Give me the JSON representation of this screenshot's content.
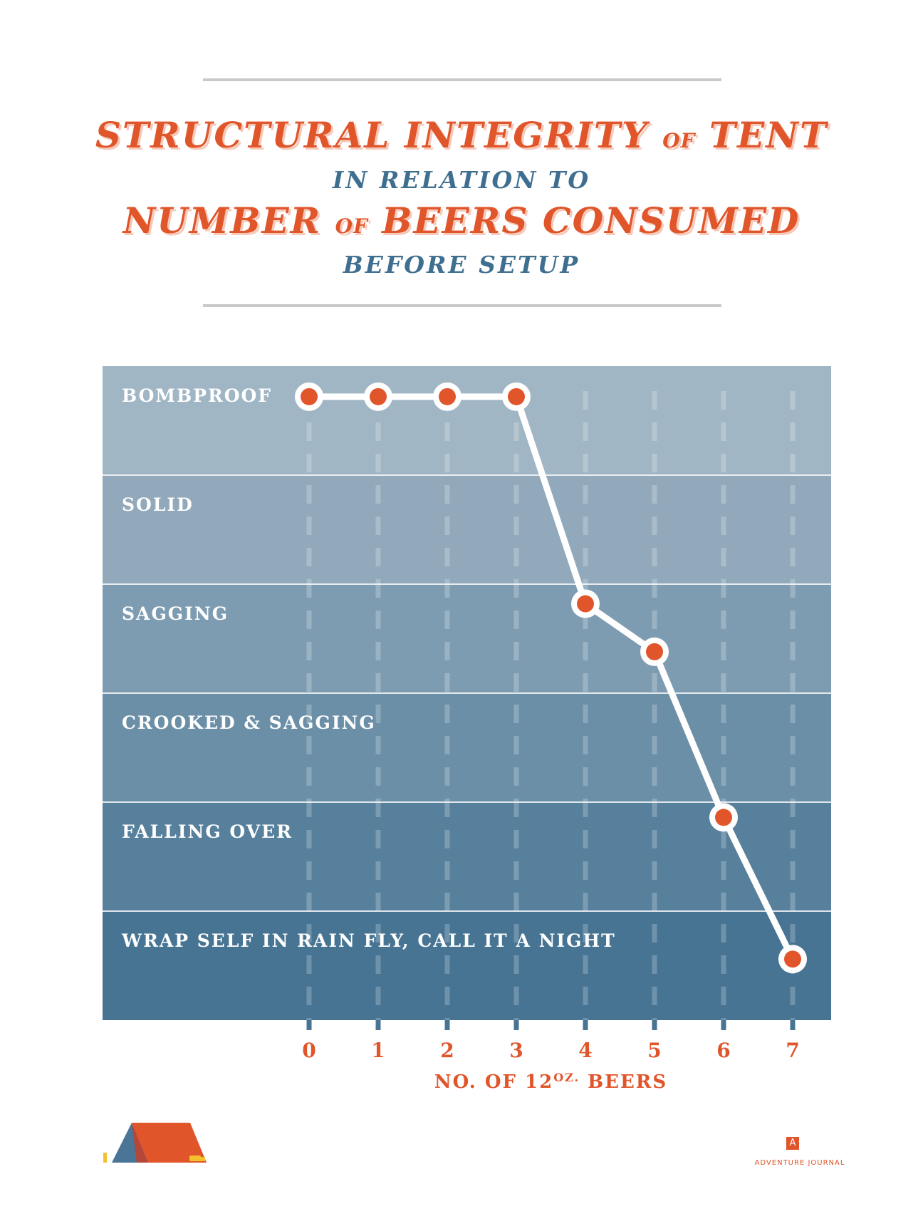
{
  "header": {
    "title_line1": {
      "part1": "STRUCTURAL INTEGRITY",
      "joiner": "OF",
      "part2": "TENT"
    },
    "title_line2": "IN RELATION TO",
    "title_line3": {
      "part1": "NUMBER",
      "joiner": "OF",
      "part2": "BEERS CONSUMED"
    },
    "title_line4": "BEFORE SETUP"
  },
  "chart_data": {
    "type": "line",
    "x": [
      0,
      1,
      2,
      3,
      4,
      5,
      6,
      7
    ],
    "y": [
      5.72,
      5.72,
      5.72,
      5.72,
      3.82,
      3.38,
      1.86,
      0.56
    ],
    "xlim": [
      0,
      7
    ],
    "ylim": [
      0,
      6
    ],
    "xlabel": {
      "prefix": "NO. OF 12",
      "sup": "OZ.",
      "suffix": " BEERS"
    },
    "x_ticks": [
      "0",
      "1",
      "2",
      "3",
      "4",
      "5",
      "6",
      "7"
    ],
    "bands": [
      "BOMBPROOF",
      "SOLID",
      "SAGGING",
      "CROOKED & SAGGING",
      "FALLING OVER",
      "WRAP SELF IN RAIN FLY, CALL IT A NIGHT"
    ],
    "band_colors": [
      "#a1b6c5",
      "#91a9ba",
      "#7e9cb1",
      "#6b8fa7",
      "#57809c",
      "#477493"
    ],
    "line_color": "#ffffff",
    "marker_color": "#e0552a",
    "tick_label_color": "#e0552a",
    "grid": "vertical dashed"
  },
  "footer": {
    "brand": "ADVENTURE JOURNAL",
    "brand_mark": "A"
  }
}
